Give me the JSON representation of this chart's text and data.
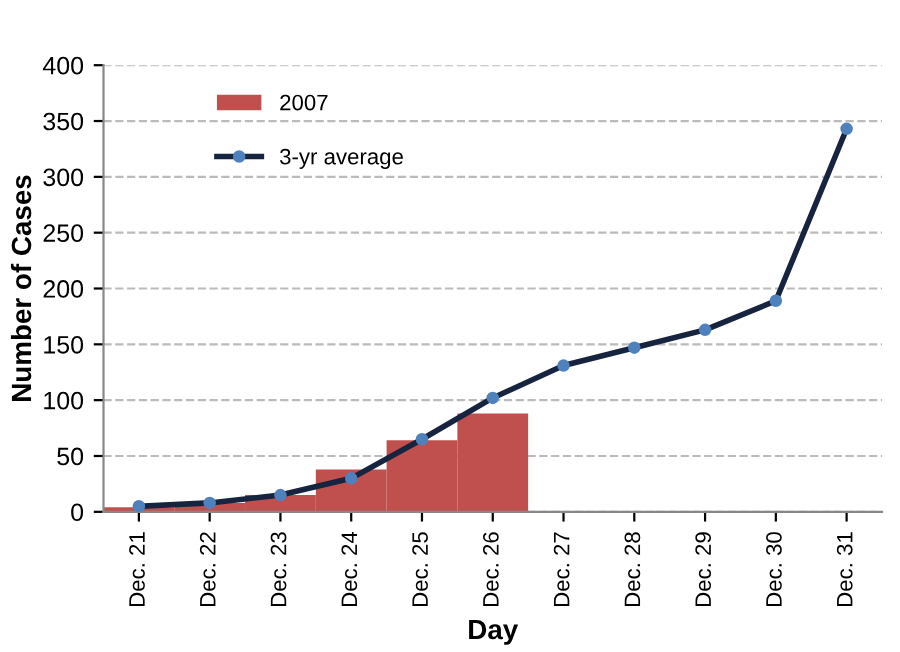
{
  "chart_data": {
    "type": "bar",
    "xlabel": "Day",
    "ylabel": "Number of Cases",
    "categories": [
      "Dec. 21",
      "Dec. 22",
      "Dec. 23",
      "Dec. 24",
      "Dec. 25",
      "Dec. 26",
      "Dec. 27",
      "Dec. 28",
      "Dec. 29",
      "Dec. 30",
      "Dec. 31"
    ],
    "series": [
      {
        "name": "2007",
        "color": "#c0504d",
        "values": [
          4,
          8,
          15,
          38,
          64,
          88,
          null,
          null,
          null,
          null,
          null
        ]
      },
      {
        "name": "3-yr average",
        "type": "line",
        "color": "#17243f",
        "marker": "circle",
        "values": [
          5,
          8,
          15,
          30,
          65,
          102,
          131,
          147,
          163,
          189,
          343
        ]
      }
    ],
    "ylim": [
      0,
      400
    ],
    "yticks": [
      0,
      50,
      100,
      150,
      200,
      250,
      300,
      350,
      400
    ],
    "grid": "y",
    "legend": "top left"
  }
}
